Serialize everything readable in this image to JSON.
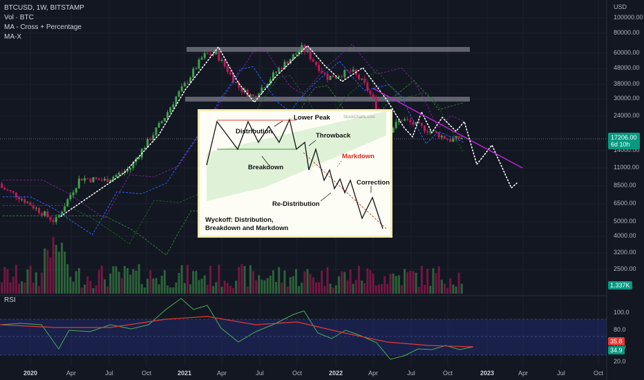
{
  "legend": {
    "symbol": "BTCUSD, 1W, BITSTAMP",
    "volume": "Vol · BTC",
    "ma_cross": "MA - Cross + Percentage",
    "max": "MA-X"
  },
  "price_axis": {
    "currency": "USD",
    "labels": [
      "100000.00",
      "80000.00",
      "60000.00",
      "48000.00",
      "38000.00",
      "30000.00",
      "24000.00",
      "17206.00",
      "14000.00",
      "11000.00",
      "8500.00",
      "6500.00",
      "5000.00",
      "4000.00",
      "3200.00",
      "2500.00"
    ],
    "current_price": "17206.00",
    "countdown": "6d 10h",
    "volume_badge": "1.337K"
  },
  "rsi": {
    "label": "RSI",
    "labels": [
      "100.0",
      "80.0",
      "60.0",
      "20.0"
    ],
    "value_ma": "35.8",
    "value": "34.9"
  },
  "time_axis": {
    "labels": [
      "2020",
      "Apr",
      "Jul",
      "Oct",
      "2021",
      "Apr",
      "Jul",
      "Oct",
      "2022",
      "Apr",
      "Jul",
      "Oct",
      "2023",
      "Apr",
      "Jul",
      "Oct"
    ]
  },
  "inset": {
    "distribution": "Distribution",
    "lower_peak": "Lower Peak",
    "throwback": "Throwback",
    "breakdown": "Breakdown",
    "markdown": "Markdown",
    "correction": "Correction",
    "redistribution": "Re-Distribution",
    "caption_line1": "Wyckoff: Distribution,",
    "caption_line2": "Breakdown and Markdown",
    "watermark": "StockCharts.com"
  },
  "colors": {
    "background": "#131722",
    "bull": "#26a69a",
    "bear": "#ef5350",
    "candle_bull": "#3fa34d",
    "candle_bear": "#c2185b",
    "trendline": "#c026d3",
    "rsi_line": "#4caf50",
    "rsi_ma": "#e53935",
    "rsi_band": "#1f2a6b",
    "price_badge": "#089981"
  },
  "chart_data": {
    "type": "candlestick",
    "symbol": "BTCUSD",
    "interval": "1W",
    "y_scale": "log",
    "x_range": [
      "2019-10",
      "2023-11"
    ],
    "y_range": [
      2500,
      100000
    ],
    "close_series_approx": {
      "x": [
        "2019-10",
        "2019-12",
        "2020-03",
        "2020-05",
        "2020-07",
        "2020-09",
        "2020-11",
        "2021-01",
        "2021-03",
        "2021-04",
        "2021-06",
        "2021-07",
        "2021-09",
        "2021-11",
        "2022-01",
        "2022-03",
        "2022-04",
        "2022-06",
        "2022-07",
        "2022-09",
        "2022-11",
        "2022-12"
      ],
      "y": [
        8800,
        7300,
        5000,
        9500,
        9200,
        10800,
        18500,
        33000,
        58000,
        60000,
        35000,
        31000,
        47000,
        65000,
        42000,
        46000,
        38000,
        19000,
        23000,
        19500,
        16500,
        17206
      ]
    },
    "resistance_zones": [
      62000,
      30000
    ],
    "rsi": {
      "range": [
        0,
        100
      ],
      "band": [
        20,
        70
      ],
      "last_value": 34.9,
      "last_ma": 35.8
    }
  }
}
